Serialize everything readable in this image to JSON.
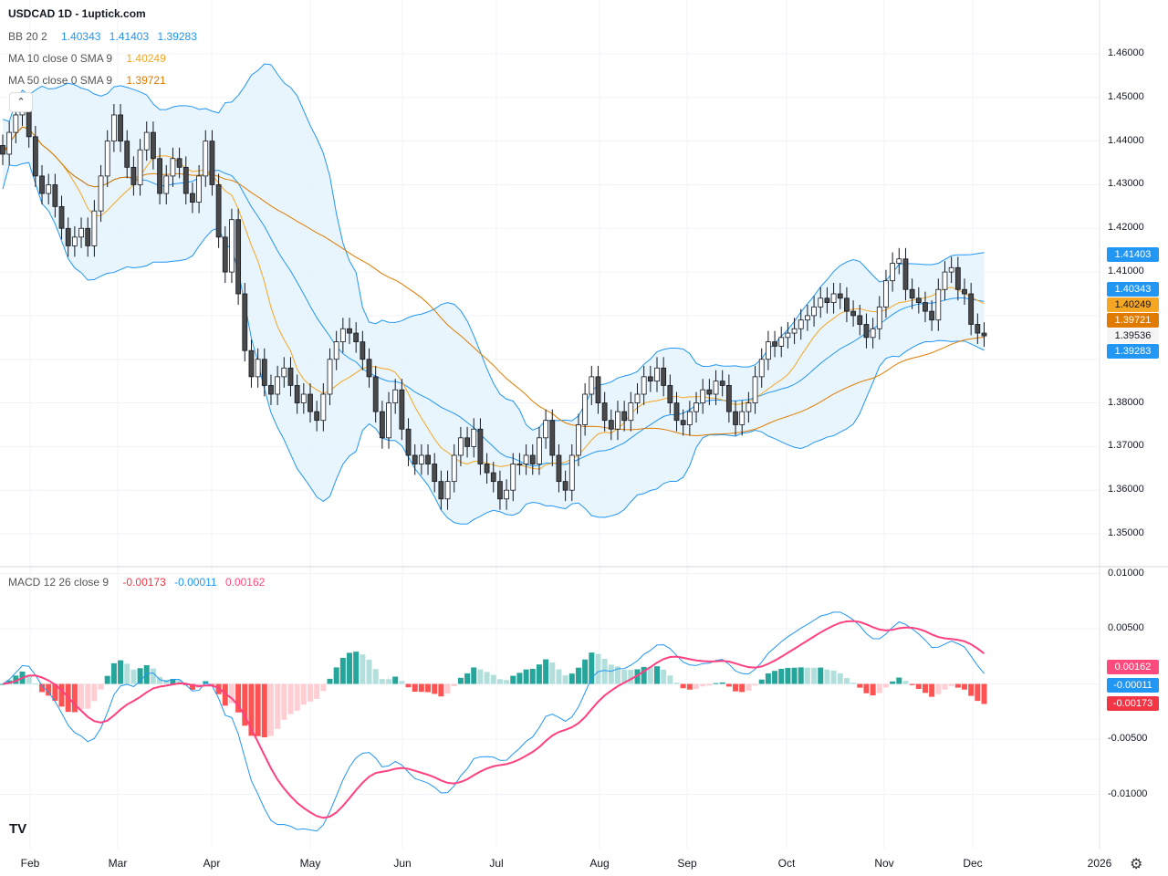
{
  "header": {
    "title": "USDCAD 1D - 1uptick.com"
  },
  "legend": {
    "bb": {
      "label": "BB 20 2",
      "basis": "1.40343",
      "upper": "1.41403",
      "lower": "1.39283"
    },
    "ma10": {
      "label": "MA 10 close 0 SMA 9",
      "value": "1.40249"
    },
    "ma50": {
      "label": "MA 50 close 0 SMA 9",
      "value": "1.39721"
    },
    "macd": {
      "label": "MACD 12 26 close 9",
      "histogram": "-0.00173",
      "macd": "-0.00011",
      "signal": "0.00162"
    }
  },
  "price_axis": {
    "ticks": [
      "1.46000",
      "1.45000",
      "1.44000",
      "1.43000",
      "1.42000",
      "1.41000",
      "1.38000",
      "1.37000",
      "1.36000",
      "1.35000"
    ],
    "tags": [
      {
        "value": "1.41403",
        "color": "#2196f3",
        "text_color": "#ffffff"
      },
      {
        "value": "1.40343",
        "color": "#2196f3",
        "text_color": "#ffffff"
      },
      {
        "value": "1.40249",
        "color": "#f5a623",
        "text_color": "#131722"
      },
      {
        "value": "1.39721",
        "color": "#e07b00",
        "text_color": "#ffffff"
      },
      {
        "value": "1.39536",
        "color": "#f5f5f5",
        "text_color": "#131722"
      },
      {
        "value": "1.39283",
        "color": "#2196f3",
        "text_color": "#ffffff"
      }
    ]
  },
  "macd_axis": {
    "ticks": [
      "0.01000",
      "0.00500",
      "-0.00500",
      "-0.01000"
    ],
    "tags": [
      {
        "value": "0.00162",
        "color": "#ff4a7d"
      },
      {
        "value": "-0.00011",
        "color": "#2196f3"
      },
      {
        "value": "-0.00173",
        "color": "#f23645"
      }
    ]
  },
  "time_axis": {
    "months": [
      "Feb",
      "Mar",
      "Apr",
      "May",
      "Jun",
      "Jul",
      "Aug",
      "Sep",
      "Oct",
      "Nov",
      "Dec",
      "2026"
    ]
  },
  "colors": {
    "bb_line": "#2196f3",
    "bb_fill": "#e3f2fd",
    "ma10": "#f5a623",
    "ma50": "#e07b00",
    "macd_line": "#2196f3",
    "signal_line": "#ff4081",
    "hist_up": "#26a69a",
    "hist_up_fading": "#b2dfdb",
    "hist_down": "#ff5252",
    "hist_down_fading": "#ffcdd2"
  },
  "icons": {
    "logo": "tradingview-logo",
    "settings": "gear-icon",
    "collapse": "chevron-up-icon"
  },
  "chart_data": {
    "type": "candlestick",
    "symbol": "USDCAD",
    "interval": "1D",
    "ylim": [
      1.345,
      1.465
    ],
    "closes": [
      1.437,
      1.442,
      1.446,
      1.448,
      1.441,
      1.432,
      1.428,
      1.43,
      1.425,
      1.42,
      1.416,
      1.418,
      1.42,
      1.416,
      1.424,
      1.432,
      1.44,
      1.446,
      1.44,
      1.434,
      1.43,
      1.438,
      1.442,
      1.436,
      1.428,
      1.432,
      1.436,
      1.434,
      1.428,
      1.426,
      1.432,
      1.44,
      1.43,
      1.418,
      1.41,
      1.422,
      1.405,
      1.392,
      1.386,
      1.39,
      1.384,
      1.382,
      1.386,
      1.388,
      1.384,
      1.38,
      1.382,
      1.378,
      1.376,
      1.382,
      1.39,
      1.394,
      1.397,
      1.396,
      1.394,
      1.39,
      1.386,
      1.378,
      1.372,
      1.38,
      1.383,
      1.374,
      1.368,
      1.366,
      1.368,
      1.366,
      1.362,
      1.358,
      1.362,
      1.368,
      1.372,
      1.37,
      1.374,
      1.366,
      1.364,
      1.362,
      1.358,
      1.36,
      1.366,
      1.366,
      1.368,
      1.366,
      1.372,
      1.376,
      1.368,
      1.362,
      1.36,
      1.368,
      1.375,
      1.382,
      1.386,
      1.38,
      1.376,
      1.374,
      1.378,
      1.376,
      1.38,
      1.382,
      1.386,
      1.385,
      1.388,
      1.384,
      1.38,
      1.376,
      1.375,
      1.378,
      1.38,
      1.383,
      1.382,
      1.385,
      1.384,
      1.378,
      1.375,
      1.378,
      1.38,
      1.386,
      1.39,
      1.394,
      1.393,
      1.395,
      1.396,
      1.397,
      1.399,
      1.4,
      1.402,
      1.404,
      1.403,
      1.405,
      1.404,
      1.401,
      1.4,
      1.398,
      1.395,
      1.397,
      1.402,
      1.408,
      1.412,
      1.413,
      1.406,
      1.404,
      1.403,
      1.401,
      1.399,
      1.406,
      1.41,
      1.411,
      1.406,
      1.405,
      1.398,
      1.396,
      1.39536
    ],
    "indicators": [
      "BB 20 2",
      "MA 10",
      "MA 50",
      "MACD 12 26 9"
    ],
    "grid": true,
    "macd_ylim": [
      -0.0145,
      0.0105
    ]
  }
}
